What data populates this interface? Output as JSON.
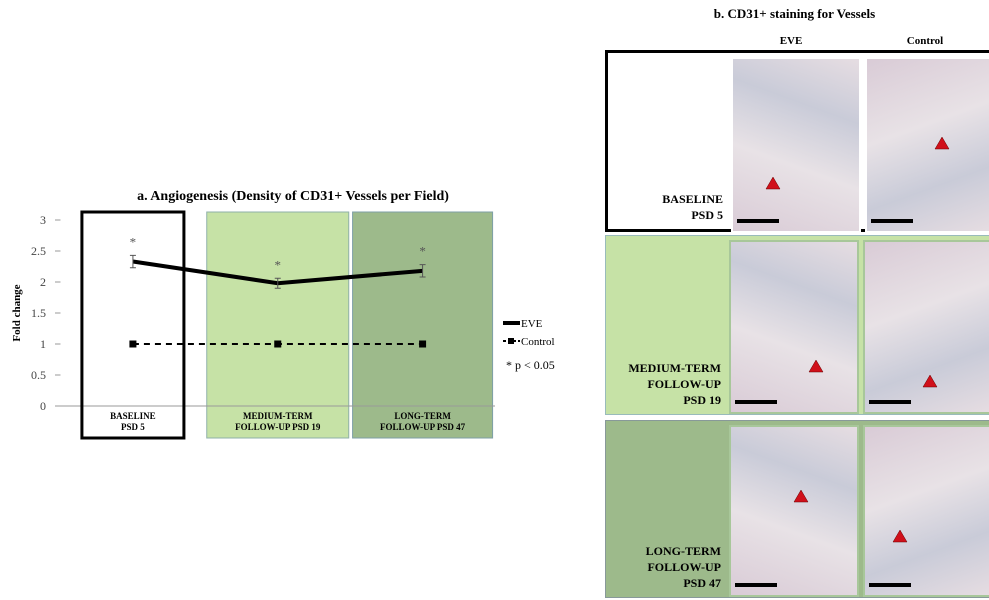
{
  "chart_data": {
    "type": "line",
    "title": "a. Angiogenesis (Density of CD31+ Vessels per Field)",
    "y_label": "Fold change",
    "categories": [
      "BASELINE PSD 5",
      "MEDIUM-TERM FOLLOW-UP PSD 19",
      "LONG-TERM FOLLOW-UP PSD 47"
    ],
    "series": [
      {
        "name": "EVE",
        "color": "#000000",
        "values": [
          2.33,
          1.98,
          2.18
        ],
        "errors": [
          0.1,
          0.08,
          0.1
        ]
      },
      {
        "name": "Control",
        "color": "#000000",
        "values": [
          1,
          1,
          1
        ]
      }
    ],
    "significance_marks": [
      "*",
      "*",
      "*"
    ],
    "note": "* p < 0.05",
    "ylim": [
      0,
      3
    ],
    "yticks": [
      0,
      0.5,
      1,
      1.5,
      2,
      2.5,
      3
    ],
    "grid": false,
    "legend": "right"
  },
  "panel_b": {
    "title": "b. CD31+ staining for Vessels",
    "columns": [
      "EVE",
      "Control"
    ],
    "rows": [
      {
        "label": [
          "BASELINE",
          "PSD 5"
        ]
      },
      {
        "label": [
          "MEDIUM-TERM",
          "FOLLOW-UP",
          "PSD 19"
        ]
      },
      {
        "label": [
          "LONG-TERM",
          "FOLLOW-UP",
          "PSD 47"
        ]
      }
    ]
  }
}
